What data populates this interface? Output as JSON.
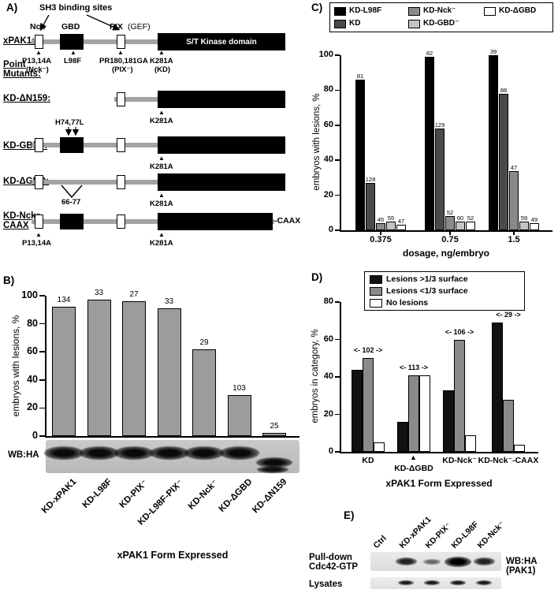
{
  "icons": {
    "up_arrow": "▲"
  },
  "panels": {
    "a": {
      "label": "A)",
      "sh3_binding_sites": "SH3 binding sites",
      "domains": {
        "nck": "Nck",
        "gbd": "GBD",
        "pix": "PIX",
        "gef": "(GEF)",
        "kinase": "S/T Kinase domain"
      },
      "construct_labels": {
        "xpak1": "xPAK1:",
        "point": "Point",
        "mutants": "Mutants:",
        "kd_dn159": "KD-ΔN159:",
        "kd_gbd_minus": "KD-GBD⁻:",
        "kd_dgbd": "KD-ΔGBD:",
        "kd_nck_minus": "KD-Nck⁻",
        "caax": "CAAX"
      },
      "mutations": {
        "p13_14a": "P13,14A",
        "nck_minus": "(Nck⁻)",
        "l98f": "L98F",
        "pr180_181ga": "PR180,181GA",
        "pix_minus": "(PIX⁻)",
        "k281a": "K281A",
        "kd": "(KD)",
        "h74_77l": "H74,77L",
        "deletion_66_77": "66-77",
        "caax_suffix": "-CAAX"
      }
    },
    "b": {
      "label": "B)",
      "wb_label": "WB:HA",
      "wb_band_levels": [
        "normal",
        "normal",
        "normal",
        "normal",
        "normal",
        "normal",
        "lower"
      ]
    },
    "c": {
      "label": "C)"
    },
    "d": {
      "label": "D)"
    },
    "e": {
      "label": "E)",
      "lanes": [
        "Ctrl",
        "KD-xPAK1",
        "KD-PIX⁻",
        "KD-L98F",
        "KD-Nck⁻"
      ],
      "pulldown_label_line1": "Pull-down",
      "pulldown_label_line2": "Cdc42-GTP",
      "lysates_label": "Lysates",
      "wb_label_line1": "WB:HA",
      "wb_label_line2": "(PAK1)",
      "pulldown_band_intensity": [
        0,
        2,
        1,
        3,
        2
      ],
      "lysate_band_intensity": [
        0,
        2,
        2,
        2,
        2
      ]
    }
  },
  "chart_data": [
    {
      "id": "B",
      "type": "bar",
      "title": "",
      "xlabel": "xPAK1 Form Expressed",
      "ylabel": "embryos with lesions, %",
      "ylim": [
        0,
        100
      ],
      "yticks": [
        0,
        20,
        40,
        60,
        80,
        100
      ],
      "categories": [
        "KD-xPAK1",
        "KD-L98F",
        "KD-PIX⁻",
        "KD-L98F-PIX⁻",
        "KD-Nck⁻",
        "KD-ΔGBD",
        "KD-ΔN159"
      ],
      "values": [
        92,
        97,
        96,
        91,
        62,
        29,
        2
      ],
      "n_labels": [
        134,
        33,
        27,
        33,
        29,
        103,
        25
      ],
      "bar_color": "#9c9c9c",
      "legend_position": "none",
      "grid": false
    },
    {
      "id": "C",
      "type": "grouped_bar",
      "title": "",
      "xlabel": "dosage, ng/embryo",
      "ylabel": "embryos with lesions, %",
      "ylim": [
        0,
        100
      ],
      "yticks": [
        0,
        20,
        40,
        60,
        80,
        100
      ],
      "categories": [
        "0.375",
        "0.75",
        "1.5"
      ],
      "series": [
        {
          "name": "KD-L98F",
          "color": "#000000",
          "values": [
            86,
            99,
            100
          ],
          "n": [
            81,
            82,
            39
          ]
        },
        {
          "name": "KD",
          "color": "#4a4a4a",
          "values": [
            27,
            58,
            78
          ],
          "n": [
            128,
            129,
            88
          ]
        },
        {
          "name": "KD-Nck⁻",
          "color": "#8a8a8a",
          "values": [
            4,
            8,
            34
          ],
          "n": [
            45,
            52,
            47
          ]
        },
        {
          "name": "KD-GBD⁻",
          "color": "#c4c4c4",
          "values": [
            5,
            5,
            5
          ],
          "n": [
            55,
            60,
            59
          ]
        },
        {
          "name": "KD-ΔGBD",
          "color": "#ffffff",
          "values": [
            3,
            5,
            4
          ],
          "n": [
            47,
            52,
            49
          ]
        }
      ],
      "legend_rows": [
        [
          0,
          2,
          4
        ],
        [
          1,
          3
        ]
      ],
      "legend_position": "top",
      "grid": false
    },
    {
      "id": "D",
      "type": "grouped_bar",
      "title": "",
      "xlabel": "xPAK1 Form Expressed",
      "ylabel": "embryos in category, %",
      "ylim": [
        0,
        80
      ],
      "yticks": [
        0,
        20,
        40,
        60,
        80
      ],
      "categories": [
        "KD",
        "KD-ΔGBD",
        "KD-Nck⁻",
        "KD-Nck⁻-CAAX"
      ],
      "group_n_labels": [
        "<- 102 ->",
        "<- 113 ->",
        "<- 106 ->",
        "<- 29 ->"
      ],
      "series": [
        {
          "name": "Lesions >1/3 surface",
          "color": "#111111",
          "values": [
            44,
            16,
            33,
            69
          ]
        },
        {
          "name": "Lesions <1/3 surface",
          "color": "#8a8a8a",
          "values": [
            50,
            41,
            60,
            28
          ]
        },
        {
          "name": "No lesions",
          "color": "#ffffff",
          "values": [
            5,
            41,
            9,
            4
          ]
        }
      ],
      "legend_position": "top-right",
      "grid": false
    }
  ]
}
